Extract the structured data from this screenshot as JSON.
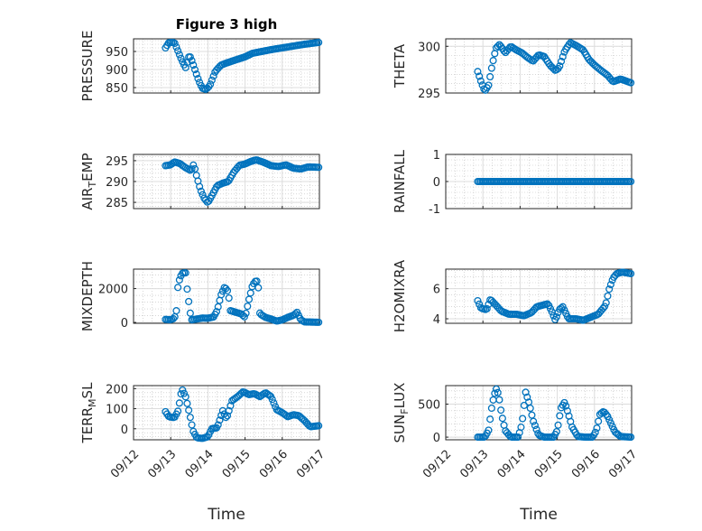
{
  "figure": {
    "title": "Figure 3 high",
    "marker_color": "#0072bd"
  },
  "chart_data": [
    {
      "id": "pressure",
      "type": "scatter",
      "marker": "circle",
      "grid": true,
      "minor_grid": true,
      "ylabel": "PRESSURE",
      "xlabel": "",
      "ylim": [
        835,
        985
      ],
      "yticks": [
        850,
        900,
        950
      ],
      "ytick_labels": [
        "850",
        "900",
        "950"
      ],
      "xlim": [
        0,
        5
      ],
      "xticks": [
        0,
        1,
        2,
        3,
        4,
        5
      ],
      "xtick_labels": [],
      "x_start": 0.86,
      "x_end": 4.98,
      "profile": [
        [
          0.86,
          960
        ],
        [
          0.95,
          975
        ],
        [
          1.1,
          975
        ],
        [
          1.2,
          950
        ],
        [
          1.3,
          925
        ],
        [
          1.4,
          905
        ],
        [
          1.5,
          940
        ],
        [
          1.55,
          930
        ],
        [
          1.65,
          900
        ],
        [
          1.75,
          870
        ],
        [
          1.85,
          848
        ],
        [
          1.95,
          845
        ],
        [
          2.05,
          855
        ],
        [
          2.2,
          895
        ],
        [
          2.35,
          912
        ],
        [
          2.5,
          918
        ],
        [
          2.7,
          925
        ],
        [
          2.85,
          930
        ],
        [
          3.0,
          935
        ],
        [
          3.2,
          945
        ],
        [
          3.45,
          950
        ],
        [
          3.7,
          955
        ],
        [
          4.0,
          960
        ],
        [
          4.3,
          965
        ],
        [
          4.6,
          970
        ],
        [
          4.98,
          975
        ]
      ]
    },
    {
      "id": "theta",
      "type": "scatter",
      "marker": "circle",
      "grid": true,
      "minor_grid": true,
      "ylabel": "THETA",
      "xlabel": "",
      "ylim": [
        295,
        300.8
      ],
      "yticks": [
        295,
        300
      ],
      "ytick_labels": [
        "295",
        "300"
      ],
      "xlim": [
        0,
        5
      ],
      "xticks": [
        0,
        1,
        2,
        3,
        4,
        5
      ],
      "xtick_labels": [],
      "x_start": 0.86,
      "x_end": 4.98,
      "profile": [
        [
          0.86,
          297.3
        ],
        [
          0.95,
          296.2
        ],
        [
          1.05,
          295.2
        ],
        [
          1.15,
          295.8
        ],
        [
          1.25,
          298.0
        ],
        [
          1.35,
          299.8
        ],
        [
          1.45,
          300.2
        ],
        [
          1.6,
          299.3
        ],
        [
          1.75,
          300.0
        ],
        [
          1.9,
          299.6
        ],
        [
          2.05,
          299.3
        ],
        [
          2.2,
          298.8
        ],
        [
          2.35,
          298.4
        ],
        [
          2.5,
          299.1
        ],
        [
          2.65,
          298.9
        ],
        [
          2.8,
          298.0
        ],
        [
          2.95,
          297.4
        ],
        [
          3.05,
          297.7
        ],
        [
          3.2,
          299.5
        ],
        [
          3.35,
          300.4
        ],
        [
          3.5,
          300.1
        ],
        [
          3.7,
          299.6
        ],
        [
          3.85,
          298.6
        ],
        [
          4.0,
          298.0
        ],
        [
          4.15,
          297.5
        ],
        [
          4.35,
          296.9
        ],
        [
          4.5,
          296.2
        ],
        [
          4.7,
          296.5
        ],
        [
          4.98,
          296.1
        ]
      ]
    },
    {
      "id": "air_temp",
      "type": "scatter",
      "marker": "circle",
      "grid": true,
      "minor_grid": true,
      "ylabel": "AIR_TEMP",
      "ylabel_base": "AIR",
      "ylabel_sub": "T",
      "ylabel_tail": "EMP",
      "xlabel": "",
      "ylim": [
        283.5,
        296.5
      ],
      "yticks": [
        285,
        290,
        295
      ],
      "ytick_labels": [
        "285",
        "290",
        "295"
      ],
      "xlim": [
        0,
        5
      ],
      "xticks": [
        0,
        1,
        2,
        3,
        4,
        5
      ],
      "xtick_labels": [],
      "x_start": 0.86,
      "x_end": 4.98,
      "profile": [
        [
          0.86,
          293.8
        ],
        [
          1.0,
          294.0
        ],
        [
          1.1,
          294.7
        ],
        [
          1.25,
          294.3
        ],
        [
          1.4,
          293.3
        ],
        [
          1.55,
          292.6
        ],
        [
          1.62,
          294.2
        ],
        [
          1.7,
          291.2
        ],
        [
          1.8,
          288.0
        ],
        [
          1.9,
          286.0
        ],
        [
          2.0,
          284.9
        ],
        [
          2.1,
          286.5
        ],
        [
          2.25,
          289.0
        ],
        [
          2.4,
          289.6
        ],
        [
          2.55,
          290.0
        ],
        [
          2.7,
          292.3
        ],
        [
          2.85,
          293.9
        ],
        [
          3.0,
          294.2
        ],
        [
          3.15,
          294.8
        ],
        [
          3.3,
          295.2
        ],
        [
          3.5,
          294.6
        ],
        [
          3.7,
          293.8
        ],
        [
          3.9,
          293.6
        ],
        [
          4.1,
          294.0
        ],
        [
          4.3,
          293.2
        ],
        [
          4.5,
          293.0
        ],
        [
          4.7,
          293.5
        ],
        [
          4.98,
          293.4
        ]
      ]
    },
    {
      "id": "rainfall",
      "type": "scatter",
      "marker": "circle",
      "grid": true,
      "minor_grid": true,
      "ylabel": "RAINFALL",
      "xlabel": "",
      "ylim": [
        -1,
        1
      ],
      "yticks": [
        -1,
        0,
        1
      ],
      "ytick_labels": [
        "-1",
        "0",
        "1"
      ],
      "xlim": [
        0,
        5
      ],
      "xticks": [
        0,
        1,
        2,
        3,
        4,
        5
      ],
      "xtick_labels": [],
      "x_start": 0.86,
      "x_end": 4.98,
      "profile": [
        [
          0.86,
          0
        ],
        [
          4.98,
          0
        ]
      ]
    },
    {
      "id": "mixdepth",
      "type": "scatter",
      "marker": "circle",
      "grid": true,
      "minor_grid": true,
      "ylabel": "MIXDEPTH",
      "xlabel": "",
      "ylim": [
        -50,
        3150
      ],
      "yticks": [
        0,
        2000
      ],
      "ytick_labels": [
        "0",
        "2000"
      ],
      "xlim": [
        0,
        5
      ],
      "xticks": [
        0,
        1,
        2,
        3,
        4,
        5
      ],
      "xtick_labels": [],
      "x_start": 0.86,
      "x_end": 4.98,
      "profile": [
        [
          0.86,
          180
        ],
        [
          1.0,
          160
        ],
        [
          1.1,
          250
        ],
        [
          1.15,
          650
        ],
        [
          1.2,
          2300
        ],
        [
          1.3,
          2900
        ],
        [
          1.4,
          2950
        ],
        [
          1.45,
          1800
        ],
        [
          1.55,
          150
        ],
        [
          1.7,
          200
        ],
        [
          1.85,
          260
        ],
        [
          2.0,
          250
        ],
        [
          2.15,
          320
        ],
        [
          2.25,
          700
        ],
        [
          2.35,
          1600
        ],
        [
          2.45,
          2100
        ],
        [
          2.55,
          1800
        ],
        [
          2.6,
          700
        ],
        [
          2.75,
          600
        ],
        [
          2.9,
          500
        ],
        [
          3.0,
          300
        ],
        [
          3.1,
          1300
        ],
        [
          3.2,
          2200
        ],
        [
          3.3,
          2500
        ],
        [
          3.35,
          2300
        ],
        [
          3.4,
          500
        ],
        [
          3.55,
          300
        ],
        [
          3.7,
          200
        ],
        [
          3.85,
          80
        ],
        [
          4.0,
          150
        ],
        [
          4.15,
          300
        ],
        [
          4.3,
          420
        ],
        [
          4.4,
          600
        ],
        [
          4.5,
          150
        ],
        [
          4.6,
          30
        ],
        [
          4.8,
          20
        ],
        [
          4.98,
          10
        ]
      ]
    },
    {
      "id": "h2omixra",
      "type": "scatter",
      "marker": "circle",
      "grid": true,
      "minor_grid": true,
      "ylabel": "H2OMIXRA",
      "xlabel": "",
      "ylim": [
        3.7,
        7.3
      ],
      "yticks": [
        4,
        6
      ],
      "ytick_labels": [
        "4",
        "6"
      ],
      "xlim": [
        0,
        5
      ],
      "xticks": [
        0,
        1,
        2,
        3,
        4,
        5
      ],
      "xtick_labels": [],
      "x_start": 0.86,
      "x_end": 4.98,
      "profile": [
        [
          0.86,
          5.2
        ],
        [
          0.95,
          4.7
        ],
        [
          1.1,
          4.6
        ],
        [
          1.2,
          5.3
        ],
        [
          1.35,
          4.9
        ],
        [
          1.5,
          4.5
        ],
        [
          1.7,
          4.3
        ],
        [
          1.9,
          4.3
        ],
        [
          2.1,
          4.2
        ],
        [
          2.3,
          4.4
        ],
        [
          2.45,
          4.8
        ],
        [
          2.6,
          4.9
        ],
        [
          2.75,
          5.0
        ],
        [
          2.85,
          4.5
        ],
        [
          2.95,
          3.9
        ],
        [
          3.05,
          4.6
        ],
        [
          3.15,
          4.8
        ],
        [
          3.3,
          4.0
        ],
        [
          3.5,
          4.0
        ],
        [
          3.7,
          3.9
        ],
        [
          3.9,
          4.1
        ],
        [
          4.1,
          4.3
        ],
        [
          4.3,
          4.9
        ],
        [
          4.4,
          6.0
        ],
        [
          4.5,
          6.7
        ],
        [
          4.6,
          7.0
        ],
        [
          4.75,
          7.1
        ],
        [
          4.98,
          7.0
        ]
      ]
    },
    {
      "id": "terr_msl",
      "type": "scatter",
      "marker": "circle",
      "grid": true,
      "minor_grid": true,
      "ylabel": "TERR_MSL",
      "ylabel_base": "TERR",
      "ylabel_sub": "M",
      "ylabel_tail": "SL",
      "xlabel": "Time",
      "ylim": [
        -55,
        215
      ],
      "yticks": [
        0,
        100,
        200
      ],
      "ytick_labels": [
        "0",
        "100",
        "200"
      ],
      "xlim": [
        0,
        5
      ],
      "xticks": [
        0,
        1,
        2,
        3,
        4,
        5
      ],
      "xtick_labels": [
        "09/12",
        "09/13",
        "09/14",
        "09/15",
        "09/16",
        "09/17"
      ],
      "x_start": 0.86,
      "x_end": 4.98,
      "profile": [
        [
          0.86,
          85
        ],
        [
          0.95,
          60
        ],
        [
          1.1,
          55
        ],
        [
          1.2,
          90
        ],
        [
          1.3,
          200
        ],
        [
          1.4,
          160
        ],
        [
          1.5,
          80
        ],
        [
          1.6,
          -10
        ],
        [
          1.7,
          -45
        ],
        [
          1.85,
          -48
        ],
        [
          2.0,
          -40
        ],
        [
          2.1,
          0
        ],
        [
          2.25,
          5
        ],
        [
          2.4,
          90
        ],
        [
          2.5,
          50
        ],
        [
          2.65,
          140
        ],
        [
          2.8,
          160
        ],
        [
          2.95,
          185
        ],
        [
          3.1,
          170
        ],
        [
          3.25,
          175
        ],
        [
          3.4,
          160
        ],
        [
          3.55,
          180
        ],
        [
          3.7,
          160
        ],
        [
          3.85,
          95
        ],
        [
          4.0,
          80
        ],
        [
          4.15,
          60
        ],
        [
          4.3,
          70
        ],
        [
          4.45,
          65
        ],
        [
          4.6,
          40
        ],
        [
          4.75,
          10
        ],
        [
          4.98,
          15
        ]
      ]
    },
    {
      "id": "sun_flux",
      "type": "scatter",
      "marker": "circle",
      "grid": true,
      "minor_grid": true,
      "ylabel": "SUN_FLUX",
      "ylabel_base": "SUN",
      "ylabel_sub": "F",
      "ylabel_tail": "LUX",
      "xlabel": "Time",
      "ylim": [
        -40,
        780
      ],
      "yticks": [
        0,
        500
      ],
      "ytick_labels": [
        "0",
        "500"
      ],
      "xlim": [
        0,
        5
      ],
      "xticks": [
        0,
        1,
        2,
        3,
        4,
        5
      ],
      "xtick_labels": [
        "09/12",
        "09/13",
        "09/14",
        "09/15",
        "09/16",
        "09/17"
      ],
      "x_start": 0.86,
      "x_end": 4.98,
      "profile": [
        [
          0.86,
          0
        ],
        [
          1.05,
          0
        ],
        [
          1.15,
          100
        ],
        [
          1.25,
          500
        ],
        [
          1.35,
          740
        ],
        [
          1.42,
          650
        ],
        [
          1.5,
          350
        ],
        [
          1.6,
          100
        ],
        [
          1.75,
          0
        ],
        [
          1.95,
          0
        ],
        [
          2.05,
          200
        ],
        [
          2.15,
          680
        ],
        [
          2.25,
          500
        ],
        [
          2.35,
          250
        ],
        [
          2.5,
          30
        ],
        [
          2.65,
          0
        ],
        [
          2.9,
          0
        ],
        [
          3.0,
          100
        ],
        [
          3.1,
          440
        ],
        [
          3.2,
          530
        ],
        [
          3.3,
          350
        ],
        [
          3.4,
          150
        ],
        [
          3.55,
          10
        ],
        [
          3.75,
          0
        ],
        [
          3.95,
          0
        ],
        [
          4.05,
          100
        ],
        [
          4.15,
          350
        ],
        [
          4.25,
          390
        ],
        [
          4.35,
          320
        ],
        [
          4.45,
          200
        ],
        [
          4.55,
          80
        ],
        [
          4.7,
          10
        ],
        [
          4.98,
          0
        ]
      ]
    }
  ]
}
